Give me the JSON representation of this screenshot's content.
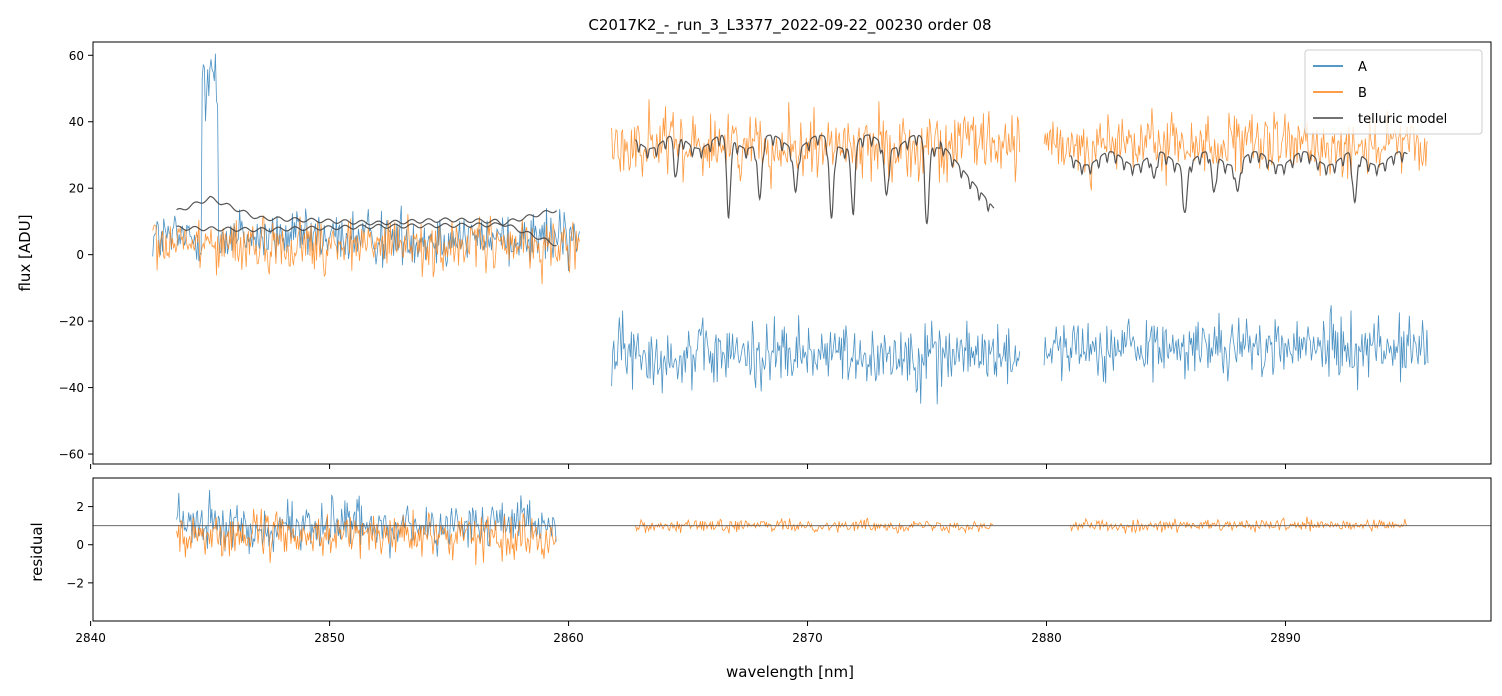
{
  "chart_data": [
    {
      "type": "line",
      "title": "C2017K2_-_run_3_L3377_2022-09-22_00230  order 08",
      "xlabel": "",
      "ylabel": "flux [ADU]",
      "xlim": [
        2840.1,
        2898.6
      ],
      "ylim": [
        -63,
        64
      ],
      "yticks": [
        60,
        40,
        20,
        0,
        -20,
        -40,
        -60
      ],
      "ytick_labels": [
        "60",
        "40",
        "20",
        "0",
        "−20",
        "−40",
        "−60"
      ],
      "xticks": [
        2840,
        2850,
        2860,
        2870,
        2880,
        2890
      ],
      "legend": {
        "location": "top-right",
        "entries": [
          "A",
          "B",
          "telluric model"
        ]
      },
      "series": [
        {
          "name": "A",
          "color": "#1f77b4",
          "segments": [
            {
              "x_start": 2842.6,
              "x_end": 2860.5,
              "center": 5,
              "amplitude": 18
            },
            {
              "x_start": 2861.8,
              "x_end": 2878.9,
              "center": -30,
              "amplitude": 22
            },
            {
              "x_start": 2879.9,
              "x_end": 2896.0,
              "center": -28,
              "amplitude": 20
            }
          ],
          "features": [
            {
              "x": 2845.0,
              "peak": 63,
              "label": "spike"
            }
          ]
        },
        {
          "name": "B",
          "color": "#ff7f0e",
          "segments": [
            {
              "x_start": 2842.6,
              "x_end": 2860.5,
              "center": 3,
              "amplitude": 18
            },
            {
              "x_start": 2861.8,
              "x_end": 2878.9,
              "center": 33,
              "amplitude": 22
            },
            {
              "x_start": 2879.9,
              "x_end": 2896.0,
              "center": 33,
              "amplitude": 20
            }
          ]
        },
        {
          "name": "telluric model",
          "color": "#444444",
          "segments": [
            {
              "x_start": 2843.6,
              "x_end": 2859.5,
              "curve": "A",
              "values_at": {
                "2843.6": 13,
                "2845.0": 17,
                "2847.0": 11,
                "2852.0": 9.5,
                "2855.0": 10.5,
                "2857.0": 10,
                "2859.5": 3
              }
            },
            {
              "x_start": 2843.6,
              "x_end": 2859.5,
              "curve": "B",
              "values_at": {
                "2843.6": 8,
                "2847.0": 7.5,
                "2852.0": 8.5,
                "2857.0": 9,
                "2859.5": 13.5
              }
            },
            {
              "x_start": 2862.8,
              "x_end": 2877.8,
              "baseline": 34,
              "baseline_end": 14,
              "dips": [
                2864.5,
                2866.7,
                2868.0,
                2869.5,
                2871.0,
                2871.9,
                2873.3,
                2875.0
              ],
              "dip_depth_max": 26
            },
            {
              "x_start": 2881.0,
              "x_end": 2895.1,
              "baseline": 29,
              "dips": [
                2884.5,
                2885.8,
                2887.0,
                2888.0,
                2892.9
              ],
              "dip_depth_max": 17
            }
          ]
        }
      ]
    },
    {
      "type": "line",
      "title": "",
      "xlabel": "wavelength [nm]",
      "ylabel": "residual",
      "xlim": [
        2840.1,
        2898.6
      ],
      "ylim": [
        -4,
        3.5
      ],
      "yticks": [
        2,
        0,
        -2
      ],
      "ytick_labels": [
        "2",
        "0",
        "−2"
      ],
      "xticks": [
        2840,
        2850,
        2860,
        2870,
        2880,
        2890
      ],
      "xtick_labels": [
        "2840",
        "2850",
        "2860",
        "2870",
        "2880",
        "2890"
      ],
      "reference_line": 1,
      "series": [
        {
          "name": "A",
          "color": "#1f77b4",
          "segments": [
            {
              "x_start": 2843.6,
              "x_end": 2859.5,
              "center": 1,
              "amplitude": 2.8
            }
          ]
        },
        {
          "name": "B",
          "color": "#ff7f0e",
          "segments": [
            {
              "x_start": 2843.6,
              "x_end": 2859.5,
              "center": 0.5,
              "amplitude": 2.6
            },
            {
              "x_start": 2862.8,
              "x_end": 2877.8,
              "center": 1,
              "amplitude": 0.7
            },
            {
              "x_start": 2881.0,
              "x_end": 2895.1,
              "center": 1,
              "amplitude": 0.7
            }
          ]
        }
      ]
    }
  ]
}
